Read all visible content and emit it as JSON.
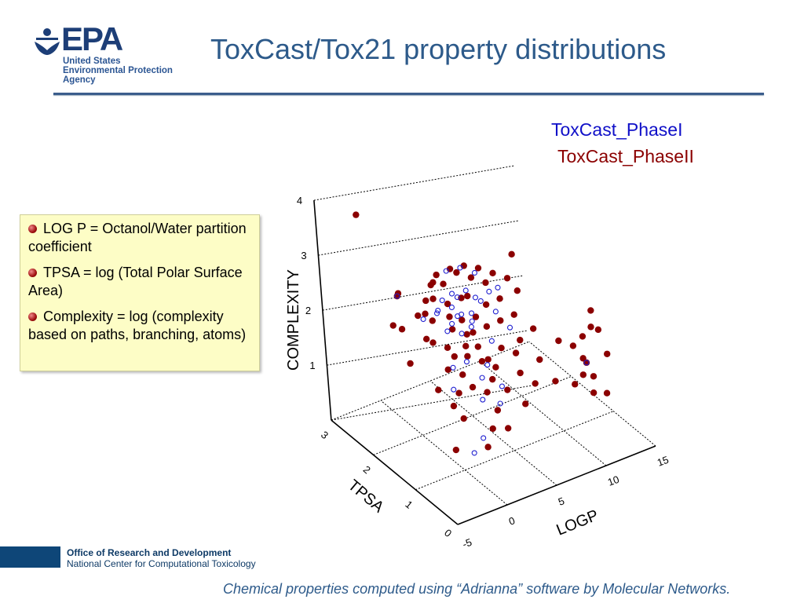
{
  "header": {
    "logo_text": "EPA",
    "logo_subtitle": [
      "United States",
      "Environmental Protection",
      "Agency"
    ],
    "title": "ToxCast/Tox21 property distributions"
  },
  "infobox": {
    "items": [
      "LOG P = Octanol/Water partition coefficient",
      "TPSA = log (Total Polar Surface Area)",
      "Complexity =  log (complexity based on paths, branching, atoms)"
    ]
  },
  "footer": {
    "office": "Office of Research and Development",
    "center": "National Center for Computational Toxicology",
    "caption": "Chemical properties computed using “Adrianna” software by Molecular Networks."
  },
  "chart_data": {
    "type": "scatter3d",
    "x": {
      "label": "LOGP",
      "range": [
        -5,
        15
      ],
      "ticks": [
        "-5",
        "0",
        "5",
        "10",
        "15"
      ]
    },
    "y": {
      "label": "TPSA",
      "range": [
        0,
        3
      ],
      "ticks": [
        "0",
        "1",
        "2",
        "3"
      ]
    },
    "z": {
      "label": "COMPLEXITY",
      "range": [
        0,
        4
      ],
      "ticks": [
        "1",
        "2",
        "3",
        "4"
      ]
    },
    "grid": true,
    "legend": "top-right",
    "series": [
      {
        "name": "ToxCast_PhaseII",
        "color": "#8b0000",
        "marker": "filled-circle",
        "points": [
          [
            -1,
            3,
            3.45
          ],
          [
            -3,
            1.6,
            3.0
          ],
          [
            -2.5,
            1.7,
            2.95
          ],
          [
            -4,
            1.5,
            2.6
          ],
          [
            -2,
            1.2,
            2.4
          ],
          [
            -3,
            1.4,
            1.9
          ],
          [
            -1,
            1.4,
            2.9
          ],
          [
            0,
            1.5,
            3.05
          ],
          [
            1,
            1.6,
            3.1
          ],
          [
            2,
            1.5,
            3.2
          ],
          [
            3,
            1.4,
            3.25
          ],
          [
            4,
            1.3,
            3.2
          ],
          [
            5,
            1.2,
            3.1
          ],
          [
            6,
            1.1,
            3.0
          ],
          [
            7,
            1.2,
            3.3
          ],
          [
            6.5,
            1.0,
            2.8
          ],
          [
            -1.5,
            1.5,
            2.6
          ],
          [
            -0.5,
            1.4,
            2.5
          ],
          [
            0.5,
            1.6,
            2.7
          ],
          [
            1.5,
            1.5,
            2.6
          ],
          [
            2.5,
            1.4,
            2.7
          ],
          [
            3.5,
            1.5,
            2.6
          ],
          [
            4.5,
            1.3,
            2.5
          ],
          [
            5.5,
            1.2,
            2.6
          ],
          [
            -1,
            1.3,
            2.2
          ],
          [
            0,
            1.2,
            2.1
          ],
          [
            1,
            1.3,
            2.3
          ],
          [
            2,
            1.2,
            2.2
          ],
          [
            3,
            1.3,
            2.1
          ],
          [
            4,
            1.2,
            2.2
          ],
          [
            5,
            1.1,
            2.3
          ],
          [
            6,
            1.0,
            2.4
          ],
          [
            -0.5,
            1.1,
            1.8
          ],
          [
            0.5,
            1.0,
            1.7
          ],
          [
            1.5,
            1.1,
            1.9
          ],
          [
            2.5,
            1.0,
            1.8
          ],
          [
            3.5,
            1.1,
            1.7
          ],
          [
            4.5,
            1.0,
            1.9
          ],
          [
            5.5,
            0.9,
            1.8
          ],
          [
            1,
            0.9,
            1.5
          ],
          [
            2,
            0.8,
            1.4
          ],
          [
            3,
            0.9,
            1.5
          ],
          [
            0,
            1.0,
            1.4
          ],
          [
            -1,
            0.9,
            1.3
          ],
          [
            4,
            0.8,
            1.3
          ],
          [
            2.5,
            0.7,
            1.1
          ],
          [
            -0.5,
            0.8,
            1.1
          ],
          [
            1.5,
            0.6,
            0.9
          ],
          [
            0.5,
            0.5,
            0.7
          ],
          [
            3,
            0.6,
            0.8
          ],
          [
            -1.5,
            0.8,
            0.6
          ],
          [
            4.5,
            0.5,
            1.2
          ],
          [
            5,
            0.7,
            1.6
          ],
          [
            6,
            0.9,
            2.0
          ],
          [
            7,
            0.8,
            2.2
          ],
          [
            1,
            1.7,
            2.9
          ],
          [
            2,
            1.7,
            2.8
          ],
          [
            3,
            1.6,
            3.0
          ],
          [
            0,
            1.7,
            2.4
          ],
          [
            -2,
            1.8,
            2.2
          ],
          [
            4,
            1.5,
            2.9
          ],
          [
            5,
            1.4,
            2.8
          ],
          [
            1.2,
            1.4,
            2.45
          ],
          [
            2.2,
            1.35,
            2.35
          ],
          [
            3.2,
            1.25,
            2.4
          ],
          [
            1.8,
            1.2,
            2.0
          ],
          [
            2.8,
            1.15,
            1.95
          ],
          [
            0.8,
            1.25,
            1.85
          ],
          [
            3.8,
            1.0,
            1.6
          ],
          [
            -2,
            1.0,
            1.6
          ],
          [
            6,
            0.6,
            1.4
          ],
          [
            7,
            0.7,
            1.7
          ],
          [
            9.5,
            0.5,
            1.2
          ],
          [
            10,
            0.4,
            1.4
          ],
          [
            10.5,
            0.5,
            1.6
          ],
          [
            11,
            0.6,
            1.9
          ],
          [
            11.5,
            0.5,
            2.1
          ],
          [
            12,
            0.6,
            2.3
          ],
          [
            10,
            0.6,
            1.8
          ],
          [
            10.5,
            0.3,
            1.1
          ],
          [
            11,
            0.4,
            1.3
          ],
          [
            12.5,
            0.4,
            1.6
          ],
          [
            9,
            0.7,
            1.9
          ],
          [
            11.8,
            0.3,
            1.0
          ],
          [
            10.8,
            0.5,
            1.5
          ],
          [
            12.2,
            0.5,
            2.0
          ],
          [
            8,
            0.6,
            1.3
          ]
        ]
      },
      {
        "name": "ToxCast_PhaseI",
        "color": "#1f1fd0",
        "marker": "open-circle",
        "points": [
          [
            1,
            1.5,
            2.7
          ],
          [
            2,
            1.5,
            2.75
          ],
          [
            3,
            1.4,
            2.8
          ],
          [
            1.5,
            1.4,
            2.6
          ],
          [
            2.5,
            1.5,
            2.65
          ],
          [
            0.5,
            1.5,
            2.55
          ],
          [
            3.5,
            1.3,
            2.7
          ],
          [
            2,
            1.3,
            2.5
          ],
          [
            1,
            1.3,
            2.4
          ],
          [
            3,
            1.3,
            2.45
          ],
          [
            2.5,
            1.2,
            2.3
          ],
          [
            1.5,
            1.2,
            2.25
          ],
          [
            0.5,
            1.3,
            2.3
          ],
          [
            4,
            1.3,
            2.6
          ],
          [
            4.5,
            1.2,
            2.8
          ],
          [
            5,
            1.1,
            2.9
          ],
          [
            0,
            1.4,
            2.6
          ],
          [
            -1,
            1.5,
            2.5
          ],
          [
            -3,
            1.6,
            3.0
          ],
          [
            2,
            1.6,
            3.1
          ],
          [
            3,
            1.5,
            3.15
          ],
          [
            4,
            1.4,
            3.05
          ],
          [
            1.8,
            1.35,
            2.45
          ],
          [
            2.8,
            1.25,
            2.35
          ],
          [
            5,
            1.2,
            2.4
          ],
          [
            5.5,
            1.0,
            2.2
          ],
          [
            4,
            1.1,
            2.0
          ],
          [
            1,
            1.0,
            1.9
          ],
          [
            2,
            0.9,
            1.6
          ],
          [
            3,
            1.0,
            1.7
          ],
          [
            0,
            1.1,
            1.8
          ],
          [
            -0.5,
            1.0,
            1.5
          ],
          [
            1.5,
            0.8,
            1.3
          ],
          [
            2.8,
            0.7,
            1.2
          ],
          [
            0.5,
            0.6,
            0.8
          ],
          [
            -0.5,
            0.6,
            0.6
          ],
          [
            3.5,
            0.8,
            1.4
          ],
          [
            10.8,
            0.5,
            1.5
          ]
        ]
      }
    ]
  }
}
